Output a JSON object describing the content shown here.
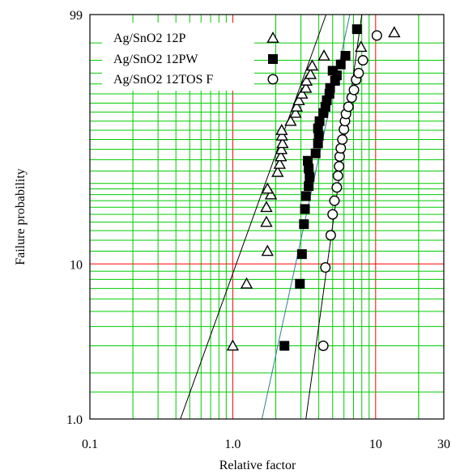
{
  "chart_data": {
    "type": "scatter",
    "title": "",
    "xlabel": "Relative factor",
    "ylabel": "Failure probability",
    "x_scale": "log",
    "y_scale": "weibull",
    "xlim": [
      0.1,
      30
    ],
    "ylim": [
      1.0,
      99
    ],
    "x_ticks": [
      {
        "value": 0.1,
        "label": "0.1"
      },
      {
        "value": 1.0,
        "label": "1.0"
      },
      {
        "value": 10,
        "label": "10"
      },
      {
        "value": 30,
        "label": "30"
      }
    ],
    "y_ticks": [
      {
        "value": 1.0,
        "label": "1.0"
      },
      {
        "value": 10,
        "label": "10"
      },
      {
        "value": 99,
        "label": "99"
      }
    ],
    "grid": true,
    "grid_colors": {
      "minor": "#00cc00",
      "major": "#ff0000"
    },
    "legend_position": "top-left",
    "series": [
      {
        "name": "Ag/SnO2 12P",
        "marker": "open-triangle",
        "color": "#000000",
        "points": [
          [
            1.0,
            3.0
          ],
          [
            1.25,
            7.5
          ],
          [
            1.75,
            12.0
          ],
          [
            1.72,
            18.0
          ],
          [
            1.72,
            22.0
          ],
          [
            1.85,
            26.0
          ],
          [
            1.75,
            28.0
          ],
          [
            2.06,
            34.5
          ],
          [
            2.13,
            38.0
          ],
          [
            2.17,
            41.5
          ],
          [
            2.19,
            45.0
          ],
          [
            2.23,
            48.0
          ],
          [
            2.21,
            52.0
          ],
          [
            2.2,
            55.0
          ],
          [
            2.54,
            60.0
          ],
          [
            2.75,
            64.5
          ],
          [
            2.8,
            68.0
          ],
          [
            2.9,
            71.5
          ],
          [
            3.05,
            75.0
          ],
          [
            3.25,
            78.0
          ],
          [
            3.28,
            81.5
          ],
          [
            3.5,
            84.5
          ],
          [
            3.6,
            88.0
          ],
          [
            4.35,
            91.5
          ],
          [
            7.9,
            94.0
          ],
          [
            13.5,
            97.0
          ]
        ],
        "fit_line": [
          [
            0.43,
            1.0
          ],
          [
            4.5,
            99
          ]
        ]
      },
      {
        "name": "Ag/SnO2 12PW",
        "marker": "filled-square",
        "color": "#000000",
        "points": [
          [
            2.3,
            3.0
          ],
          [
            2.95,
            7.5
          ],
          [
            3.05,
            11.5
          ],
          [
            3.15,
            17.5
          ],
          [
            3.2,
            21.5
          ],
          [
            3.25,
            25.5
          ],
          [
            3.4,
            29.0
          ],
          [
            3.45,
            32.5
          ],
          [
            3.4,
            36.0
          ],
          [
            3.35,
            39.5
          ],
          [
            3.8,
            43.0
          ],
          [
            3.95,
            48.0
          ],
          [
            4.0,
            52.0
          ],
          [
            3.95,
            56.0
          ],
          [
            4.05,
            60.0
          ],
          [
            4.3,
            64.5
          ],
          [
            4.45,
            68.0
          ],
          [
            4.55,
            71.5
          ],
          [
            4.75,
            75.0
          ],
          [
            4.8,
            78.0
          ],
          [
            5.2,
            81.5
          ],
          [
            5.35,
            84.0
          ],
          [
            5.0,
            86.0
          ],
          [
            5.7,
            88.5
          ],
          [
            6.15,
            91.5
          ],
          [
            7.4,
            97.5
          ]
        ],
        "fit_line": [
          [
            1.6,
            1.0
          ],
          [
            6.6,
            99
          ]
        ]
      },
      {
        "name": "Ag/SnO2 12TOS F",
        "marker": "open-circle",
        "color": "#000000",
        "points": [
          [
            4.3,
            3.0
          ],
          [
            4.45,
            9.5
          ],
          [
            4.85,
            15.0
          ],
          [
            5.0,
            20.0
          ],
          [
            5.15,
            24.0
          ],
          [
            5.35,
            28.5
          ],
          [
            5.45,
            33.0
          ],
          [
            5.55,
            37.0
          ],
          [
            5.6,
            41.5
          ],
          [
            5.7,
            45.5
          ],
          [
            5.85,
            50.0
          ],
          [
            6.0,
            55.5
          ],
          [
            6.1,
            60.0
          ],
          [
            6.2,
            64.0
          ],
          [
            6.45,
            68.0
          ],
          [
            6.8,
            73.0
          ],
          [
            7.05,
            77.0
          ],
          [
            7.3,
            82.0
          ],
          [
            7.6,
            85.0
          ],
          [
            8.15,
            90.0
          ],
          [
            10.2,
            96.5
          ]
        ],
        "fit_line": [
          [
            3.25,
            1.0
          ],
          [
            8.0,
            99
          ]
        ]
      }
    ]
  }
}
